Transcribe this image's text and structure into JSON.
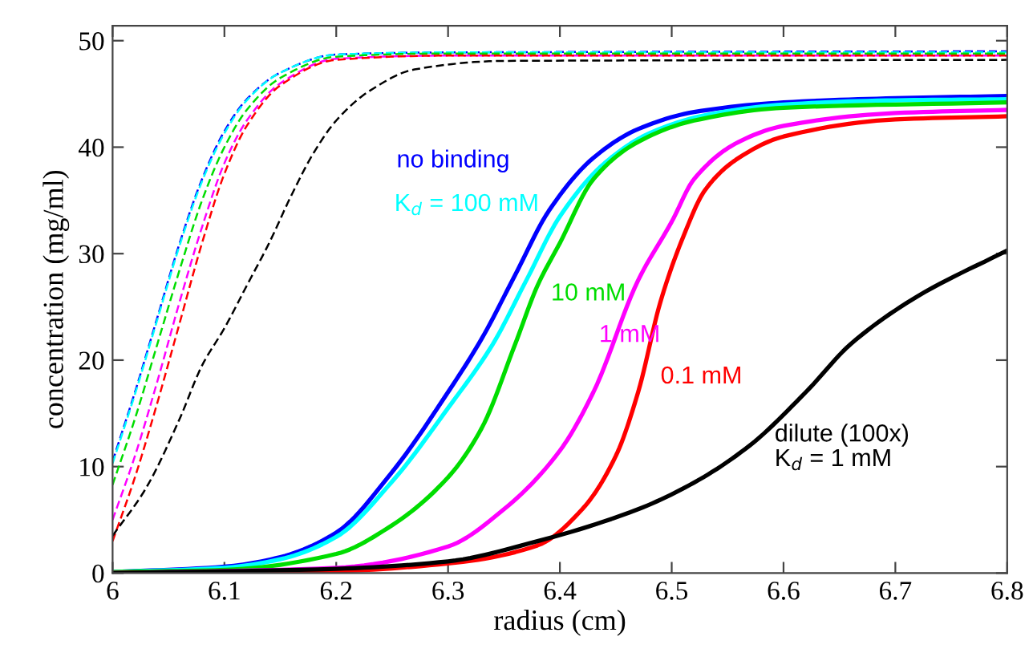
{
  "chart_data": {
    "type": "line",
    "xlabel": "radius (cm)",
    "ylabel": "concentration (mg/ml)",
    "xlim": [
      6,
      6.8
    ],
    "ylim": [
      0,
      51.4
    ],
    "xticks": [
      6,
      6.1,
      6.2,
      6.3,
      6.4,
      6.5,
      6.6,
      6.7,
      6.8
    ],
    "yticks": [
      0,
      10,
      20,
      30,
      40,
      50
    ],
    "grid": false,
    "marker": "none",
    "series": [
      {
        "name": "no binding",
        "color": "#0000ff",
        "line_style": "solid",
        "x": [
          6.0,
          6.1,
          6.15,
          6.2,
          6.25,
          6.3,
          6.33,
          6.36,
          6.39,
          6.43,
          6.47,
          6.52,
          6.6,
          6.7,
          6.8
        ],
        "values": [
          0.1,
          0.6,
          1.5,
          3.8,
          9.5,
          17,
          22,
          28,
          34,
          39,
          41.7,
          43.3,
          44.2,
          44.6,
          44.8
        ]
      },
      {
        "name": "K$_{d}$ = 100 mM",
        "color": "#00ffff",
        "line_style": "solid",
        "x": [
          6.0,
          6.1,
          6.15,
          6.2,
          6.25,
          6.3,
          6.34,
          6.37,
          6.4,
          6.44,
          6.48,
          6.53,
          6.6,
          6.7,
          6.8
        ],
        "values": [
          0.1,
          0.5,
          1.3,
          3.4,
          8.6,
          15.5,
          21.5,
          27.5,
          33.5,
          38.5,
          41.3,
          43,
          44,
          44.4,
          44.5
        ]
      },
      {
        "name": "10 mM",
        "color": "#00dd00",
        "line_style": "solid",
        "x": [
          6.0,
          6.1,
          6.2,
          6.25,
          6.3,
          6.33,
          6.36,
          6.38,
          6.4,
          6.43,
          6.47,
          6.52,
          6.6,
          6.8
        ],
        "values": [
          0.1,
          0.3,
          1.8,
          4.5,
          9,
          13.6,
          21.5,
          27,
          31,
          37,
          40.5,
          42.5,
          43.7,
          44.2
        ]
      },
      {
        "name": "1 mM",
        "color": "#ff00ff",
        "line_style": "solid",
        "x": [
          6.0,
          6.2,
          6.3,
          6.35,
          6.4,
          6.43,
          6.47,
          6.5,
          6.52,
          6.56,
          6.6,
          6.7,
          6.8
        ],
        "values": [
          0,
          0.5,
          2.5,
          6,
          11.5,
          17,
          27.5,
          33,
          37,
          40.5,
          42,
          43.2,
          43.5
        ]
      },
      {
        "name": "0.1 mM",
        "color": "#ff0000",
        "line_style": "solid",
        "x": [
          6.0,
          6.2,
          6.3,
          6.38,
          6.42,
          6.45,
          6.47,
          6.49,
          6.51,
          6.53,
          6.56,
          6.6,
          6.7,
          6.8
        ],
        "values": [
          0,
          0.2,
          0.9,
          2.6,
          6,
          11,
          17,
          25.5,
          31.5,
          36,
          39,
          41,
          42.6,
          42.9
        ]
      },
      {
        "name": "dilute (100x)\nK$_{d}$ = 1 mM",
        "color": "#000000",
        "line_style": "solid",
        "x": [
          6.0,
          6.2,
          6.3,
          6.38,
          6.47,
          6.52,
          6.57,
          6.62,
          6.66,
          6.72,
          6.8
        ],
        "values": [
          0,
          0.4,
          1.1,
          3,
          6,
          8.5,
          12,
          17,
          21.5,
          26,
          30.3
        ]
      },
      {
        "color": "#0000ff",
        "line_style": "dashed",
        "x": [
          6.0,
          6.02,
          6.04,
          6.06,
          6.08,
          6.1,
          6.12,
          6.15,
          6.2,
          6.3,
          6.8
        ],
        "values": [
          10.5,
          17,
          24,
          31,
          37,
          41.5,
          44.5,
          47,
          48.7,
          48.9,
          49
        ]
      },
      {
        "color": "#00ffff",
        "line_style": "dashed",
        "x": [
          6.0,
          6.02,
          6.04,
          6.06,
          6.08,
          6.1,
          6.12,
          6.15,
          6.2,
          6.3,
          6.8
        ],
        "values": [
          10.3,
          16.8,
          23.8,
          30.8,
          36.8,
          41.3,
          44.4,
          47,
          48.7,
          48.9,
          48.9
        ]
      },
      {
        "color": "#00dd00",
        "line_style": "dashed",
        "x": [
          6.0,
          6.02,
          6.04,
          6.06,
          6.08,
          6.1,
          6.12,
          6.15,
          6.2,
          6.3,
          6.8
        ],
        "values": [
          8.3,
          14.5,
          21.5,
          28.5,
          35,
          40,
          43.5,
          46.5,
          48.5,
          48.8,
          48.8
        ]
      },
      {
        "color": "#ff00ff",
        "line_style": "dashed",
        "x": [
          6.0,
          6.02,
          6.04,
          6.06,
          6.08,
          6.1,
          6.12,
          6.15,
          6.2,
          6.3,
          6.8
        ],
        "values": [
          5,
          11,
          18,
          25.5,
          32.5,
          38.5,
          42.5,
          46,
          48.3,
          48.6,
          48.6
        ]
      },
      {
        "color": "#ff0000",
        "line_style": "dashed",
        "x": [
          6.0,
          6.02,
          6.04,
          6.06,
          6.08,
          6.1,
          6.12,
          6.15,
          6.2,
          6.3,
          6.8
        ],
        "values": [
          3,
          9,
          16,
          23.5,
          31,
          37.5,
          42,
          45.8,
          48.2,
          48.6,
          48.6
        ]
      },
      {
        "color": "#000000",
        "line_style": "dashed",
        "x": [
          6.0,
          6.03,
          6.06,
          6.08,
          6.1,
          6.12,
          6.14,
          6.16,
          6.18,
          6.2,
          6.23,
          6.27,
          6.35,
          6.8
        ],
        "values": [
          3.5,
          8,
          14.5,
          19.5,
          23,
          27,
          31,
          35.5,
          39.5,
          42.5,
          45.3,
          47.3,
          48.1,
          48.2
        ]
      }
    ]
  }
}
